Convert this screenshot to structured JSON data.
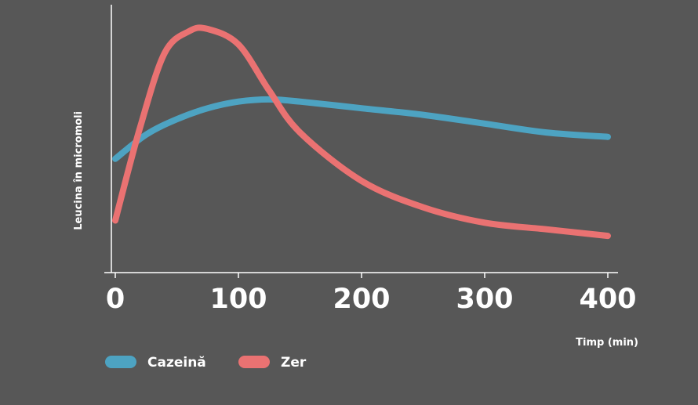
{
  "chart_data": {
    "type": "line",
    "xlabel": "Timp (min)",
    "ylabel": "Leucina în micromoli",
    "xlim": [
      0,
      400
    ],
    "ylim": [
      0,
      10
    ],
    "x_ticks": [
      0,
      100,
      200,
      300,
      400
    ],
    "y_ticks_shown": false,
    "grid": false,
    "legend_position": "bottom-left",
    "series": [
      {
        "name": "Cazeină",
        "color": "#4da3c2",
        "x": [
          0,
          25,
          50,
          75,
          100,
          125,
          150,
          200,
          250,
          300,
          350,
          400
        ],
        "y": [
          4.1,
          5.2,
          5.9,
          6.4,
          6.7,
          6.8,
          6.7,
          6.4,
          6.1,
          5.7,
          5.3,
          5.1
        ]
      },
      {
        "name": "Zer",
        "color": "#ea7272",
        "x": [
          0,
          20,
          40,
          60,
          75,
          100,
          125,
          150,
          200,
          250,
          300,
          350,
          400
        ],
        "y": [
          1.3,
          5.5,
          8.9,
          9.9,
          10.0,
          9.3,
          7.2,
          5.3,
          3.1,
          1.9,
          1.2,
          0.9,
          0.6
        ]
      }
    ]
  }
}
